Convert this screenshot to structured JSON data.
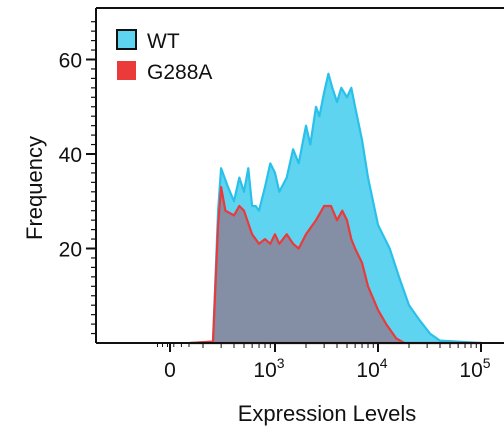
{
  "chart_data": {
    "type": "area",
    "title": "",
    "xlabel": "Expression Levels",
    "ylabel": "Frequency",
    "x_scale": "biexponential",
    "xlim": [
      -60,
      100000
    ],
    "ylim": [
      0,
      70
    ],
    "grid": false,
    "legend_position": "top-left",
    "x_ticks": [
      {
        "value": 0,
        "base": "0",
        "exp": ""
      },
      {
        "value": 1000,
        "base": "10",
        "exp": "3"
      },
      {
        "value": 10000,
        "base": "10",
        "exp": "4"
      },
      {
        "value": 100000,
        "base": "10",
        "exp": "5"
      }
    ],
    "y_ticks": [
      {
        "value": 20,
        "label": "20"
      },
      {
        "value": 40,
        "label": "40"
      },
      {
        "value": 60,
        "label": "60"
      }
    ],
    "series": [
      {
        "name": "WT",
        "color": "#5fd4f0",
        "stroke": "#29c0ea",
        "x": [
          150,
          250,
          280,
          300,
          350,
          400,
          450,
          500,
          550,
          600,
          650,
          700,
          800,
          900,
          1000,
          1100,
          1300,
          1500,
          1700,
          2000,
          2200,
          2500,
          2700,
          3000,
          3300,
          3600,
          4000,
          4400,
          5000,
          5500,
          6000,
          7000,
          8000,
          10000,
          13000,
          16000,
          20000,
          25000,
          32000,
          40000,
          100000
        ],
        "values": [
          0,
          0.3,
          28,
          37,
          33,
          30,
          35,
          32,
          37,
          29,
          29,
          28,
          33,
          38,
          36,
          32,
          35,
          41,
          38,
          46,
          42,
          50,
          48,
          53,
          57,
          54,
          51,
          54,
          52,
          54,
          50,
          43,
          35,
          25,
          20,
          14,
          8,
          5,
          2,
          0.5,
          0
        ]
      },
      {
        "name": "G288A",
        "color": "#b23b4a",
        "stroke": "#ea3a3a",
        "x": [
          150,
          250,
          280,
          300,
          330,
          400,
          450,
          500,
          600,
          700,
          800,
          900,
          1000,
          1100,
          1300,
          1500,
          1700,
          2000,
          2500,
          3000,
          3500,
          4000,
          4500,
          5000,
          5500,
          6000,
          7000,
          8000,
          10000,
          12000,
          15000,
          18000,
          100000
        ],
        "values": [
          0,
          0.3,
          25,
          33,
          28,
          27,
          29,
          28,
          23,
          21,
          22,
          21,
          23,
          21,
          23,
          21,
          20,
          23,
          26,
          29,
          29,
          26,
          28,
          26,
          22,
          20,
          17,
          12,
          7,
          4,
          1,
          0,
          0
        ]
      }
    ]
  }
}
